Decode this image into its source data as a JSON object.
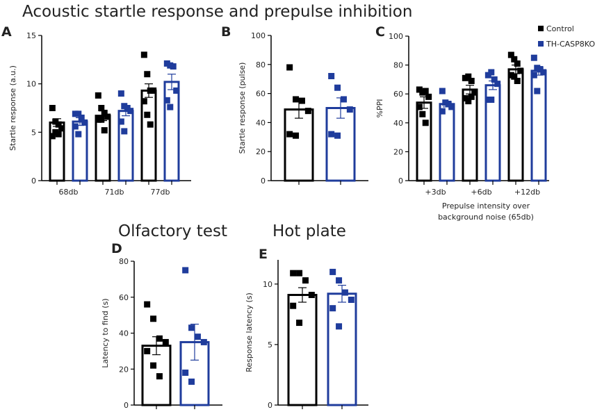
{
  "titles": {
    "main": "Acoustic startle response and prepulse inhibition",
    "olfactory": "Olfactory test",
    "hotplate": "Hot plate"
  },
  "legend": [
    {
      "label": "Control",
      "color": "#000000"
    },
    {
      "label": "TH-CASP8KO",
      "color": "#1f3c9c"
    }
  ],
  "chart_data": [
    {
      "type": "bar",
      "panel": "A",
      "ylabel": "Startle response (a.u.)",
      "xlabel": "",
      "ylim": [
        0,
        15
      ],
      "yticks": [
        0,
        5,
        10,
        15
      ],
      "categories": [
        "68db",
        "71db",
        "77db"
      ],
      "series": [
        {
          "name": "Control",
          "means": [
            6.0,
            6.7,
            9.3
          ],
          "sem": [
            0.4,
            0.5,
            0.7
          ],
          "points": [
            [
              7.5,
              6.1,
              5.8,
              5.4,
              4.6,
              5.0,
              4.8
            ],
            [
              8.8,
              7.5,
              7.0,
              6.6,
              6.3,
              6.3,
              5.2
            ],
            [
              13.0,
              11.0,
              9.3,
              9.3,
              8.2,
              6.8,
              5.8
            ]
          ]
        },
        {
          "name": "TH-CASP8KO",
          "means": [
            6.1,
            7.2,
            10.2
          ],
          "sem": [
            0.4,
            0.5,
            0.8
          ],
          "points": [
            [
              6.9,
              6.9,
              6.5,
              6.0,
              5.6,
              4.8
            ],
            [
              9.0,
              7.7,
              7.5,
              7.2,
              6.1,
              5.1
            ],
            [
              12.1,
              11.9,
              11.8,
              9.3,
              8.3,
              7.6
            ]
          ]
        }
      ]
    },
    {
      "type": "bar",
      "panel": "B",
      "ylabel": "Startle response (pulse)",
      "xlabel": "",
      "ylim": [
        0,
        100
      ],
      "yticks": [
        0,
        20,
        40,
        60,
        80,
        100
      ],
      "categories": [
        ""
      ],
      "series": [
        {
          "name": "Control",
          "means": [
            49
          ],
          "sem": [
            6
          ],
          "points": [
            [
              78,
              56,
              55,
              48,
              32,
              31
            ]
          ]
        },
        {
          "name": "TH-CASP8KO",
          "means": [
            50
          ],
          "sem": [
            7
          ],
          "points": [
            [
              72,
              64,
              56,
              49,
              32,
              31
            ]
          ]
        }
      ]
    },
    {
      "type": "bar",
      "panel": "C",
      "ylabel": "%PPI",
      "xlabel": "Prepulse intensity over background noise (65db)",
      "xlabel_lines": [
        "Prepulse intensity over",
        "background noise (65db)"
      ],
      "ylim": [
        0,
        100
      ],
      "yticks": [
        0,
        20,
        40,
        60,
        80,
        100
      ],
      "categories": [
        "+3db",
        "+6db",
        "+12db"
      ],
      "series": [
        {
          "name": "Control",
          "means": [
            54,
            63,
            77
          ],
          "sem": [
            4,
            3,
            3
          ],
          "points": [
            [
              63,
              61,
              62,
              58,
              51,
              46,
              40
            ],
            [
              71,
              72,
              69,
              61,
              57,
              55,
              58
            ],
            [
              87,
              84,
              81,
              76,
              73,
              72,
              69
            ]
          ]
        },
        {
          "name": "TH-CASP8KO",
          "means": [
            53,
            66,
            76
          ],
          "sem": [
            2,
            3,
            3
          ],
          "points": [
            [
              62,
              54,
              53,
              51,
              48
            ],
            [
              73,
              75,
              70,
              67,
              56,
              56
            ],
            [
              85,
              78,
              77,
              75,
              73,
              62
            ]
          ]
        }
      ]
    },
    {
      "type": "bar",
      "panel": "D",
      "ylabel": "Latency to find (s)",
      "xlabel": "",
      "ylim": [
        0,
        80
      ],
      "yticks": [
        0,
        20,
        40,
        60,
        80
      ],
      "categories": [
        ""
      ],
      "series": [
        {
          "name": "Control",
          "means": [
            33
          ],
          "sem": [
            5
          ],
          "points": [
            [
              56,
              48,
              37,
              35,
              30,
              22,
              16
            ]
          ]
        },
        {
          "name": "TH-CASP8KO",
          "means": [
            35
          ],
          "sem": [
            10
          ],
          "points": [
            [
              75,
              43,
              38,
              35,
              18,
              13
            ]
          ]
        }
      ]
    },
    {
      "type": "bar",
      "panel": "E",
      "ylabel": "Response latency (s)",
      "xlabel": "",
      "ylim": [
        0,
        12
      ],
      "yticks": [
        0,
        5,
        10
      ],
      "categories": [
        ""
      ],
      "series": [
        {
          "name": "Control",
          "means": [
            9.1
          ],
          "sem": [
            0.6
          ],
          "points": [
            [
              10.9,
              10.9,
              10.3,
              9.1,
              8.2,
              6.8
            ]
          ]
        },
        {
          "name": "TH-CASP8KO",
          "means": [
            9.2
          ],
          "sem": [
            0.7
          ],
          "points": [
            [
              11.0,
              10.3,
              9.3,
              8.7,
              8.0,
              6.5
            ]
          ]
        }
      ]
    }
  ]
}
